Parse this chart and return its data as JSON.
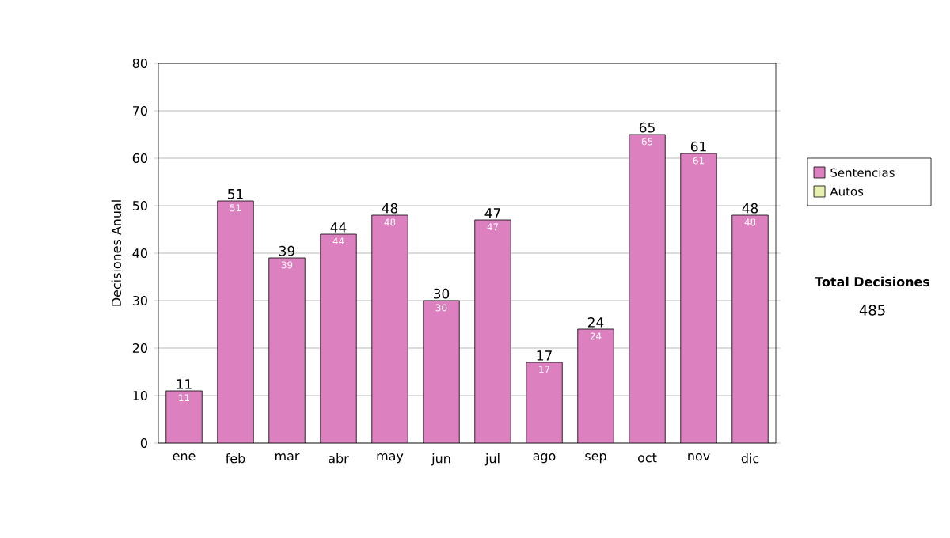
{
  "chart_data": {
    "type": "bar",
    "ylabel": "Decisiones Anual",
    "categories": [
      "ene",
      "feb",
      "mar",
      "abr",
      "may",
      "jun",
      "jul",
      "ago",
      "sep",
      "oct",
      "nov",
      "dic"
    ],
    "series": [
      {
        "name": "Sentencias",
        "color": "#dd80c0",
        "values": [
          11,
          51,
          39,
          44,
          48,
          30,
          47,
          17,
          24,
          65,
          61,
          48
        ]
      },
      {
        "name": "Autos",
        "color": "#e8f0b0",
        "values": [
          null,
          null,
          null,
          null,
          null,
          null,
          null,
          null,
          null,
          null,
          null,
          null
        ]
      }
    ],
    "ylim": [
      0,
      80
    ],
    "yticks": [
      0,
      10,
      20,
      30,
      40,
      50,
      60,
      70,
      80
    ],
    "grid": "y",
    "legend": "right",
    "data_labels": true,
    "annotations": [
      "Total Decisiones",
      "485",
      {
        "text": "11",
        "x": "ene",
        "y": 11
      },
      {
        "text": "51",
        "x": "feb",
        "y": 51
      },
      {
        "text": "39",
        "x": "mar",
        "y": 39
      },
      {
        "text": "44",
        "x": "abr",
        "y": 44
      },
      {
        "text": "48",
        "x": "may",
        "y": 48
      },
      {
        "text": "30",
        "x": "jun",
        "y": 30
      },
      {
        "text": "47",
        "x": "jul",
        "y": 47
      },
      {
        "text": "17",
        "x": "ago",
        "y": 17
      },
      {
        "text": "24",
        "x": "sep",
        "y": 24
      },
      {
        "text": "65",
        "x": "oct",
        "y": 65
      },
      {
        "text": "61",
        "x": "nov",
        "y": 61
      },
      {
        "text": "48",
        "x": "dic",
        "y": 48
      }
    ]
  }
}
